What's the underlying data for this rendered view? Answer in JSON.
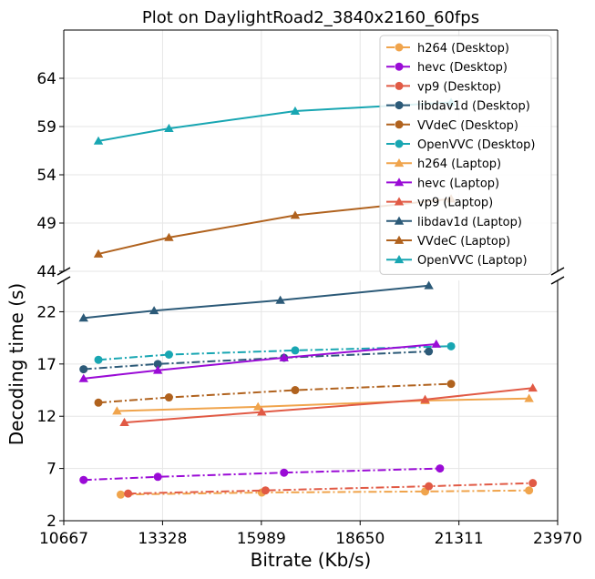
{
  "chart_data": {
    "type": "line",
    "title": "Plot on DaylightRoad2_3840x2160_60fps",
    "xlabel": "Bitrate (Kb/s)",
    "ylabel": "Decoding time (s)",
    "x_ticks": [
      "10667",
      "13328",
      "15989",
      "18650",
      "21311",
      "23970"
    ],
    "xlim": [
      10667,
      23970
    ],
    "broken_axis": {
      "upper": {
        "ylim": [
          44,
          69
        ],
        "y_ticks": [
          "44",
          "49",
          "54",
          "59",
          "64"
        ]
      },
      "lower": {
        "ylim": [
          2,
          25
        ],
        "y_ticks": [
          "2",
          "7",
          "12",
          "17",
          "22"
        ]
      }
    },
    "grid": true,
    "legend_position": "top-right",
    "series": [
      {
        "name": "h264 (Desktop)",
        "color": "#f0a44c",
        "style": "dashdot",
        "marker": "circle",
        "points": [
          [
            12200,
            4.5
          ],
          [
            16000,
            4.7
          ],
          [
            20400,
            4.8
          ],
          [
            23200,
            4.9
          ]
        ]
      },
      {
        "name": "hevc (Desktop)",
        "color": "#9a0bd6",
        "style": "dashdot",
        "marker": "circle",
        "points": [
          [
            11200,
            5.9
          ],
          [
            13200,
            6.2
          ],
          [
            16600,
            6.6
          ],
          [
            20800,
            7.0
          ]
        ]
      },
      {
        "name": "vp9 (Desktop)",
        "color": "#e15a45",
        "style": "dashdot",
        "marker": "circle",
        "points": [
          [
            12400,
            4.6
          ],
          [
            16100,
            4.9
          ],
          [
            20500,
            5.3
          ],
          [
            23300,
            5.6
          ]
        ]
      },
      {
        "name": "libdav1d (Desktop)",
        "color": "#2c5a78",
        "style": "dashdot",
        "marker": "circle",
        "points": [
          [
            11200,
            16.5
          ],
          [
            13200,
            17.0
          ],
          [
            16600,
            17.6
          ],
          [
            20500,
            18.2
          ]
        ]
      },
      {
        "name": "VVdeC (Desktop)",
        "color": "#b0621e",
        "style": "dashdot",
        "marker": "circle",
        "points": [
          [
            11600,
            13.3
          ],
          [
            13500,
            13.8
          ],
          [
            16900,
            14.5
          ],
          [
            21100,
            15.1
          ]
        ]
      },
      {
        "name": "OpenVVC (Desktop)",
        "color": "#18a6b2",
        "style": "dashdot",
        "marker": "circle",
        "points": [
          [
            11600,
            17.4
          ],
          [
            13500,
            17.9
          ],
          [
            16900,
            18.3
          ],
          [
            21100,
            18.7
          ]
        ]
      },
      {
        "name": "h264 (Laptop)",
        "color": "#f0a44c",
        "style": "solid",
        "marker": "triangle",
        "points": [
          [
            12100,
            12.5
          ],
          [
            15900,
            12.9
          ],
          [
            20400,
            13.5
          ],
          [
            23200,
            13.7
          ]
        ]
      },
      {
        "name": "hevc (Laptop)",
        "color": "#9a0bd6",
        "style": "solid",
        "marker": "triangle",
        "points": [
          [
            11200,
            15.6
          ],
          [
            13200,
            16.4
          ],
          [
            16600,
            17.6
          ],
          [
            20700,
            18.9
          ]
        ]
      },
      {
        "name": "vp9 (Laptop)",
        "color": "#e15a45",
        "style": "solid",
        "marker": "triangle",
        "points": [
          [
            12300,
            11.4
          ],
          [
            16000,
            12.4
          ],
          [
            20400,
            13.6
          ],
          [
            23300,
            14.7
          ]
        ]
      },
      {
        "name": "libdav1d (Laptop)",
        "color": "#2c5a78",
        "style": "solid",
        "marker": "triangle",
        "points": [
          [
            11200,
            21.4
          ],
          [
            13100,
            22.1
          ],
          [
            16500,
            23.1
          ],
          [
            20500,
            24.5
          ]
        ]
      },
      {
        "name": "VVdeC (Laptop)",
        "color": "#b0621e",
        "style": "solid",
        "marker": "triangle",
        "points": [
          [
            11600,
            45.8
          ],
          [
            13500,
            47.5
          ],
          [
            16900,
            49.8
          ],
          [
            21100,
            51.5
          ]
        ]
      },
      {
        "name": "OpenVVC (Laptop)",
        "color": "#18a6b2",
        "style": "solid",
        "marker": "triangle",
        "points": [
          [
            11600,
            57.5
          ],
          [
            13500,
            58.8
          ],
          [
            16900,
            60.6
          ],
          [
            21100,
            61.5
          ]
        ]
      }
    ]
  }
}
